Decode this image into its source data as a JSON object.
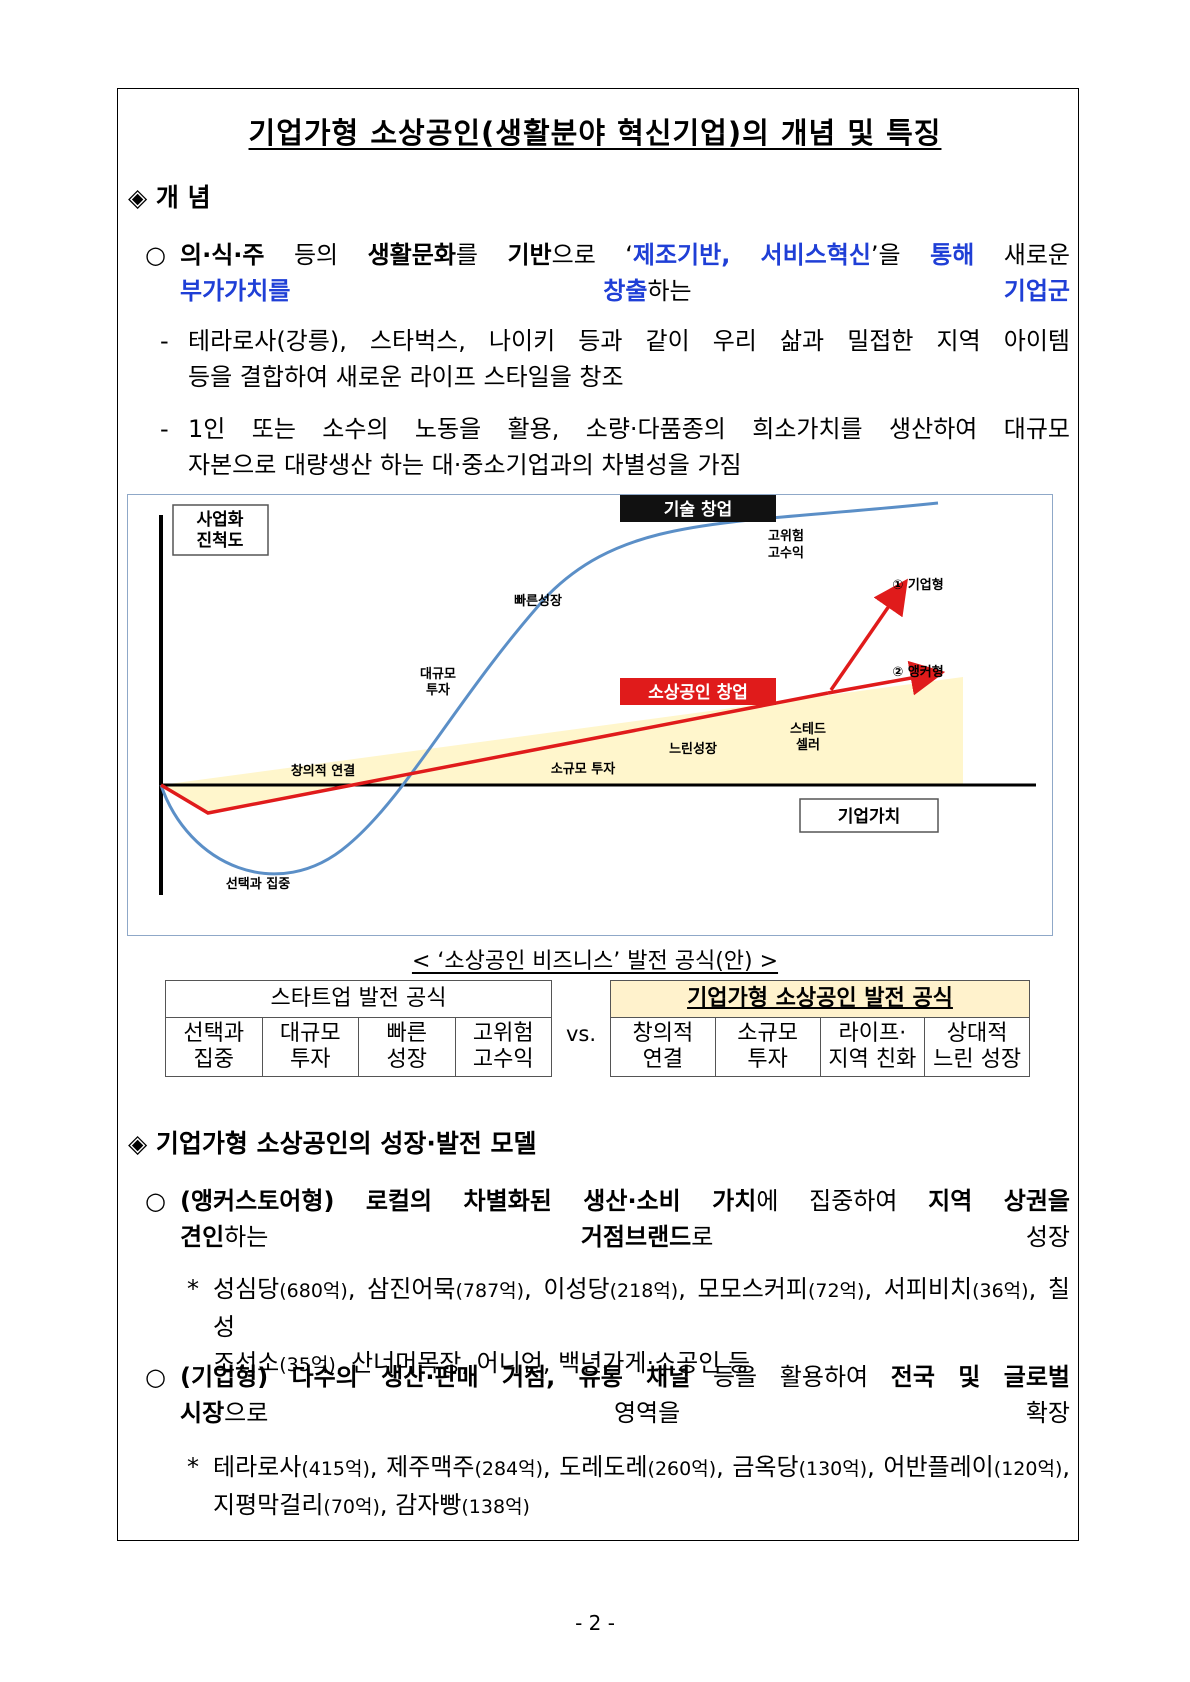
{
  "title": "기업가형 소상공인(생활분야 혁신기업)의 개념 및 특징",
  "section1": {
    "heading": "◈ 개 념",
    "para_bullet": "○",
    "para_line1": [
      {
        "t": "의·식·주",
        "s": "b"
      },
      {
        "t": " 등의 ",
        "s": ""
      },
      {
        "t": "생활문화",
        "s": "b"
      },
      {
        "t": "를 ",
        "s": ""
      },
      {
        "t": "기반",
        "s": "b"
      },
      {
        "t": "으로 ‘",
        "s": ""
      },
      {
        "t": "제조기반, 서비스혁신",
        "s": "blue"
      },
      {
        "t": "’을 ",
        "s": ""
      },
      {
        "t": "통해",
        "s": "blue"
      },
      {
        "t": " 새로운",
        "s": ""
      }
    ],
    "para_line2": [
      {
        "t": "부가가치를 창출",
        "s": "blue"
      },
      {
        "t": "하는 ",
        "s": ""
      },
      {
        "t": "기업군",
        "s": "blue"
      }
    ],
    "sub1_bullet": "-",
    "sub1_line1": "테라로사(강릉), 스타벅스, 나이키 등과 같이 우리 삶과 밀접한 지역 아이템",
    "sub1_line2": "등을 결합하여 새로운 라이프 스타일을 창조",
    "sub2_bullet": "-",
    "sub2_line1": "1인 또는 소수의 노동을 활용, 소량·다품종의 희소가치를 생산하여 대규모",
    "sub2_line2": "자본으로 대량생산 하는 대·중소기업과의 차별성을 가짐"
  },
  "figure": {
    "yaxis_label_1": "사업화",
    "yaxis_label_2": "진척도",
    "xaxis_label": "기업가치",
    "tech_label": "기술 창업",
    "small_label": "소상공인 창업",
    "high_risk_1": "고위험",
    "high_risk_2": "고수익",
    "fast_growth": "빠른성장",
    "large_invest_1": "대규모",
    "large_invest_2": "투자",
    "creative_link": "창의적 연결",
    "small_invest": "소규모 투자",
    "slow_growth": "느린성장",
    "steady_1": "스테드",
    "steady_2": "셀러",
    "select_focus": "선택과 집중",
    "type1": "① 기업형",
    "type2": "② 앵커형",
    "colors": {
      "tech_curve": "#5b8fc7",
      "small_line": "#e01b1b",
      "fill": "#fff6cc",
      "tag_bg": "#e01b1b",
      "tech_bg": "#111111"
    }
  },
  "caption": "< ‘소상공인 비즈니스’ 발전 공식(안) >",
  "startup_table": {
    "header": "스타트업 발전 공식",
    "cells": [
      [
        "선택과",
        "집중"
      ],
      [
        "대규모",
        "투자"
      ],
      [
        "빠른",
        "성장"
      ],
      [
        "고위험",
        "고수익"
      ]
    ]
  },
  "vs_label": "vs.",
  "entre_table": {
    "header": "기업가형 소상공인 발전 공식",
    "cells": [
      [
        "창의적",
        "연결"
      ],
      [
        "소규모",
        "투자"
      ],
      [
        "라이프·",
        "지역 친화"
      ],
      [
        "상대적",
        "느린 성장"
      ]
    ],
    "header_bg": "#fff2cc"
  },
  "section2": {
    "heading": "◈ 기업가형 소상공인의 성장·발전 모델",
    "p1_bullet": "○",
    "p1_line1": [
      {
        "t": "(앵커스토어형) 로컬의 차별화된 생산·소비 가치",
        "s": "b"
      },
      {
        "t": "에 집중하여 ",
        "s": ""
      },
      {
        "t": "지역 상권을",
        "s": "b"
      }
    ],
    "p1_line2": [
      {
        "t": "견인",
        "s": "b"
      },
      {
        "t": "하는 ",
        "s": ""
      },
      {
        "t": "거점브랜드",
        "s": "b"
      },
      {
        "t": "로 성장",
        "s": ""
      }
    ],
    "p1_note_bullet": "*",
    "p1_note_line1": [
      {
        "t": "성심당",
        "s": ""
      },
      {
        "t": "(680억)",
        "s": "small"
      },
      {
        "t": ", 삼진어묵",
        "s": ""
      },
      {
        "t": "(787억)",
        "s": "small"
      },
      {
        "t": ", 이성당",
        "s": ""
      },
      {
        "t": "(218억)",
        "s": "small"
      },
      {
        "t": ", 모모스커피",
        "s": ""
      },
      {
        "t": "(72억)",
        "s": "small"
      },
      {
        "t": ", 서피비치",
        "s": ""
      },
      {
        "t": "(36억)",
        "s": "small"
      },
      {
        "t": ", 칠성",
        "s": ""
      }
    ],
    "p1_note_line2": [
      {
        "t": "조선소",
        "s": ""
      },
      {
        "t": "(35억)",
        "s": "small"
      },
      {
        "t": ", 산너머목장, 어니언, 백년가게·소공인 등",
        "s": ""
      }
    ],
    "p2_bullet": "○",
    "p2_line1": [
      {
        "t": "(기업형) 다수의 생산·판매 거점, 유통 채널",
        "s": "b"
      },
      {
        "t": " 등을 활용하여 ",
        "s": ""
      },
      {
        "t": "전국 및 글로벌",
        "s": "b"
      }
    ],
    "p2_line2": [
      {
        "t": "시장",
        "s": "b"
      },
      {
        "t": "으로 영역을 확장",
        "s": ""
      }
    ],
    "p2_note_bullet": "*",
    "p2_note_line1": [
      {
        "t": "테라로사",
        "s": ""
      },
      {
        "t": "(415억)",
        "s": "small"
      },
      {
        "t": ", 제주맥주",
        "s": ""
      },
      {
        "t": "(284억)",
        "s": "small"
      },
      {
        "t": ", 도레도레",
        "s": ""
      },
      {
        "t": "(260억)",
        "s": "small"
      },
      {
        "t": ", 금옥당",
        "s": ""
      },
      {
        "t": "(130억)",
        "s": "small"
      },
      {
        "t": ", 어반플레이",
        "s": ""
      },
      {
        "t": "(120억)",
        "s": "small"
      },
      {
        "t": ",",
        "s": ""
      }
    ],
    "p2_note_line2": [
      {
        "t": "지평막걸리",
        "s": ""
      },
      {
        "t": "(70억)",
        "s": "small"
      },
      {
        "t": ", 감자빵",
        "s": ""
      },
      {
        "t": "(138억)",
        "s": "small"
      }
    ]
  },
  "page_number": "- 2 -"
}
